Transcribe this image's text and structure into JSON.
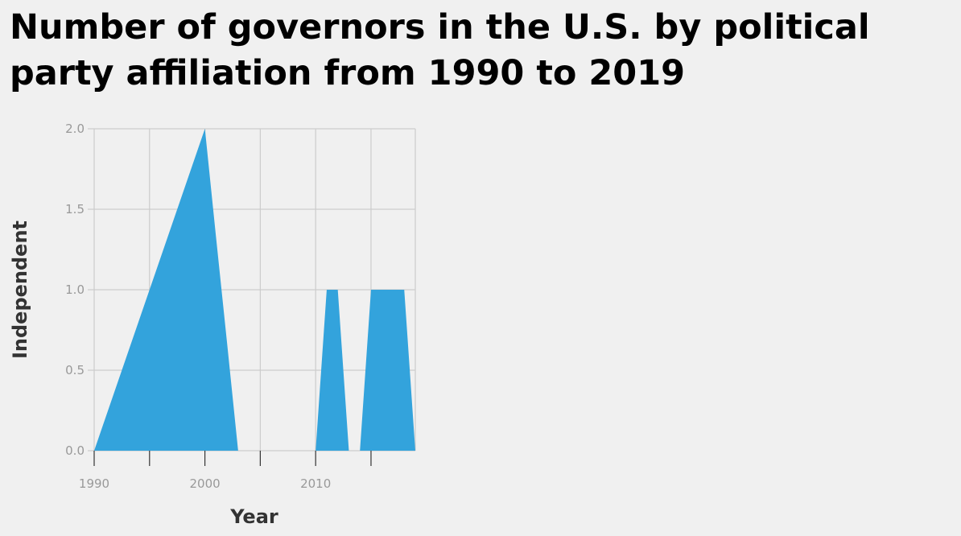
{
  "chart_data": {
    "type": "area",
    "title": "Number of governors in the U.S. by political party affiliation from 1990 to 2019",
    "xlabel": "Year",
    "ylabel": "Independent",
    "xlim": [
      1990,
      2019
    ],
    "ylim": [
      0,
      2
    ],
    "x_ticks": [
      1990,
      1995,
      2000,
      2005,
      2010,
      2015
    ],
    "x_tick_labels": [
      "1990",
      "",
      "2000",
      "",
      "2010",
      ""
    ],
    "y_ticks": [
      0,
      0.5,
      1,
      1.5,
      2
    ],
    "y_tick_labels": [
      "0.0",
      "0.5",
      "1.0",
      "1.5",
      "2.0"
    ],
    "grid": true,
    "color": "#33a3dc",
    "series": [
      {
        "x": [
          1990,
          1991,
          1992,
          1993,
          1994,
          1995,
          1996,
          1997,
          1998,
          1999,
          2000,
          2001,
          2002,
          2003,
          2004,
          2005,
          2006,
          2007,
          2008,
          2009,
          2010,
          2011,
          2012,
          2013,
          2014,
          2015,
          2016,
          2017,
          2018,
          2019
        ],
        "values": [
          0,
          0.2,
          0.4,
          0.6,
          0.8,
          1,
          1.2,
          1.4,
          1.6,
          1.8,
          2,
          1.33,
          0.67,
          0,
          0,
          0,
          0,
          0,
          0,
          0,
          0,
          1,
          1,
          0,
          0,
          1,
          1,
          1,
          1,
          0
        ]
      }
    ]
  }
}
